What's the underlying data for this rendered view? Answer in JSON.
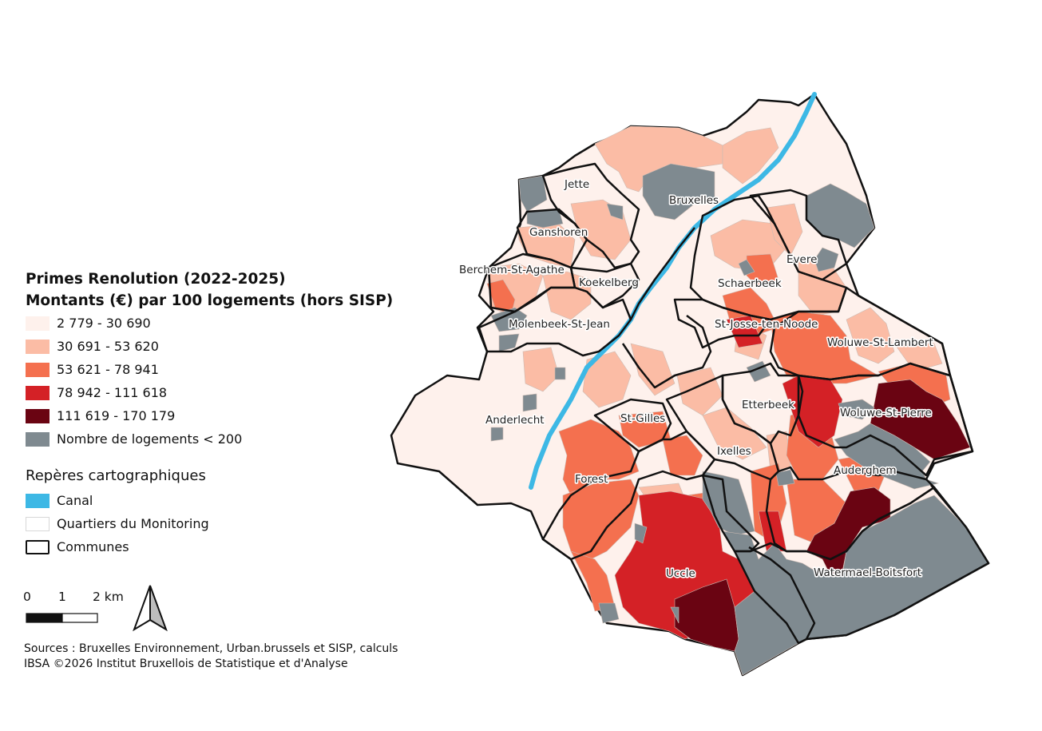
{
  "legend": {
    "title_line1": "Primes Renolution (2022-2025)",
    "title_line2": "Montants (€) par 100 logements (hors SISP)",
    "classes": [
      {
        "label": "2 779 - 30 690",
        "color": "#fef1ec"
      },
      {
        "label": "30 691 - 53 620",
        "color": "#fbbca5"
      },
      {
        "label": "53 621 - 78 941",
        "color": "#f4704f"
      },
      {
        "label": "78 942 - 111 618",
        "color": "#d42126"
      },
      {
        "label": "111 619 - 170 179",
        "color": "#6a0412"
      },
      {
        "label": "Nombre de logements < 200",
        "color": "#7f8a90"
      }
    ],
    "landmarks_title": "Repères cartographiques",
    "landmarks": [
      {
        "label": "Canal",
        "color": "#3db8e5",
        "icon": "canal-swatch"
      },
      {
        "label": "Quartiers du Monitoring",
        "color": "#ffffff",
        "icon": "quartier-swatch"
      },
      {
        "label": "Communes",
        "color": "#ffffff",
        "icon": "commune-swatch"
      }
    ]
  },
  "scale": {
    "ticks": [
      "0",
      "1",
      "2 km"
    ]
  },
  "sources": {
    "line1": "Sources : Bruxelles Environnement, Urban.brussels et SISP, calculs",
    "line2": "IBSA ©2026 Institut Bruxellois de Statistique et d'Analyse"
  },
  "communes": [
    "Jette",
    "Bruxelles",
    "Ganshoren",
    "Berchem-St-Agathe",
    "Koekelberg",
    "Evere",
    "Schaerbeek",
    "Molenbeek-St-Jean",
    "St-Josse-ten-Noode",
    "Woluwe-St-Lambert",
    "Anderlecht",
    "St-Gilles",
    "Etterbeek",
    "Woluwe-St-Pierre",
    "Ixelles",
    "Auderghem",
    "Forest",
    "Uccle",
    "Watermael-Boitsfort"
  ],
  "colors": {
    "c1": "#fef1ec",
    "c2": "#fbbca5",
    "c3": "#f4704f",
    "c4": "#d42126",
    "c5": "#6a0412",
    "lowhousing": "#7f8a90",
    "canal": "#3db8e5",
    "border": "#111111"
  }
}
